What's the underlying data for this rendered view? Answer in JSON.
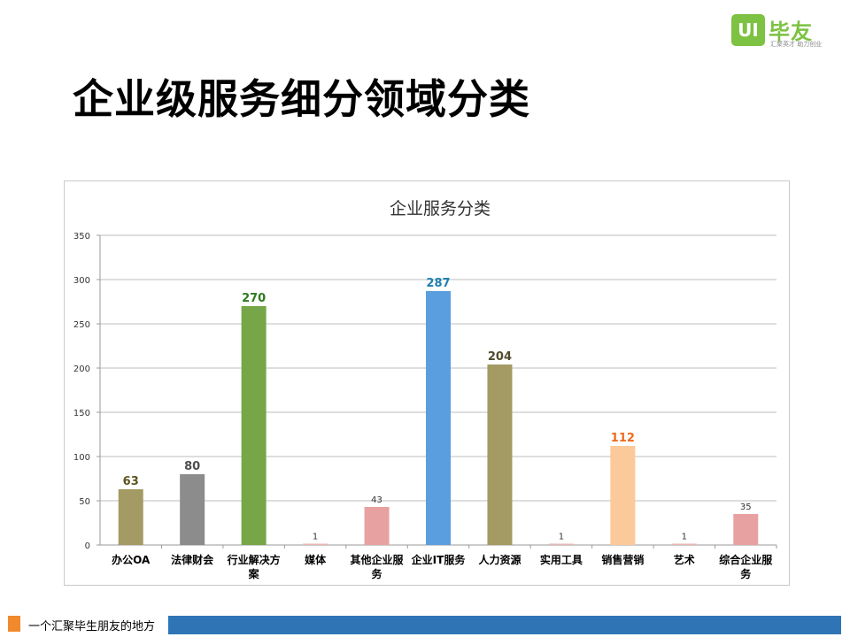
{
  "logo": {
    "badge_text": "UI",
    "name": "毕友",
    "tagline": "汇聚英才 助力创业",
    "brand_color": "#7dc242"
  },
  "slide": {
    "title": "企业级服务细分领域分类"
  },
  "footer": {
    "text": "一个汇聚毕生朋友的地方",
    "accent_color": "#f08a2c",
    "bar_color": "#2f75b5"
  },
  "chart_data": {
    "type": "bar",
    "title": "企业服务分类",
    "xlabel": "",
    "ylabel": "",
    "ylim": [
      0,
      350
    ],
    "yticks": [
      0,
      50,
      100,
      150,
      200,
      250,
      300,
      350
    ],
    "grid": true,
    "legend": "none",
    "categories": [
      "办公OA",
      "法律财会",
      "行业解决方案",
      "媒体",
      "其他企业服务",
      "企业IT服务",
      "人力资源",
      "实用工具",
      "销售营销",
      "艺术",
      "综合企业服务"
    ],
    "category_lines": [
      [
        "办公OA"
      ],
      [
        "法律财会"
      ],
      [
        "行业解决方",
        "案"
      ],
      [
        "媒体"
      ],
      [
        "其他企业服",
        "务"
      ],
      [
        "企业IT服务"
      ],
      [
        "人力资源"
      ],
      [
        "实用工具"
      ],
      [
        "销售营销"
      ],
      [
        "艺术"
      ],
      [
        "综合企业服",
        "务"
      ]
    ],
    "values": [
      63,
      80,
      270,
      1,
      43,
      287,
      204,
      1,
      112,
      1,
      35
    ],
    "bar_colors": [
      "#a39a64",
      "#8c8c8c",
      "#76a647",
      "#e8b4b4",
      "#e8a1a1",
      "#5b9ee0",
      "#a39a64",
      "#e8b4b4",
      "#fcc99a",
      "#e8b4b4",
      "#e8a1a1"
    ],
    "label_colors": [
      "#5c5420",
      "#4d4d4d",
      "#2f7a1c",
      "#333333",
      "#333333",
      "#1d7fb0",
      "#4f4a2a",
      "#333333",
      "#ee6a1a",
      "#333333",
      "#333333"
    ],
    "label_bold": [
      true,
      true,
      true,
      false,
      false,
      true,
      true,
      false,
      true,
      false,
      false
    ]
  }
}
